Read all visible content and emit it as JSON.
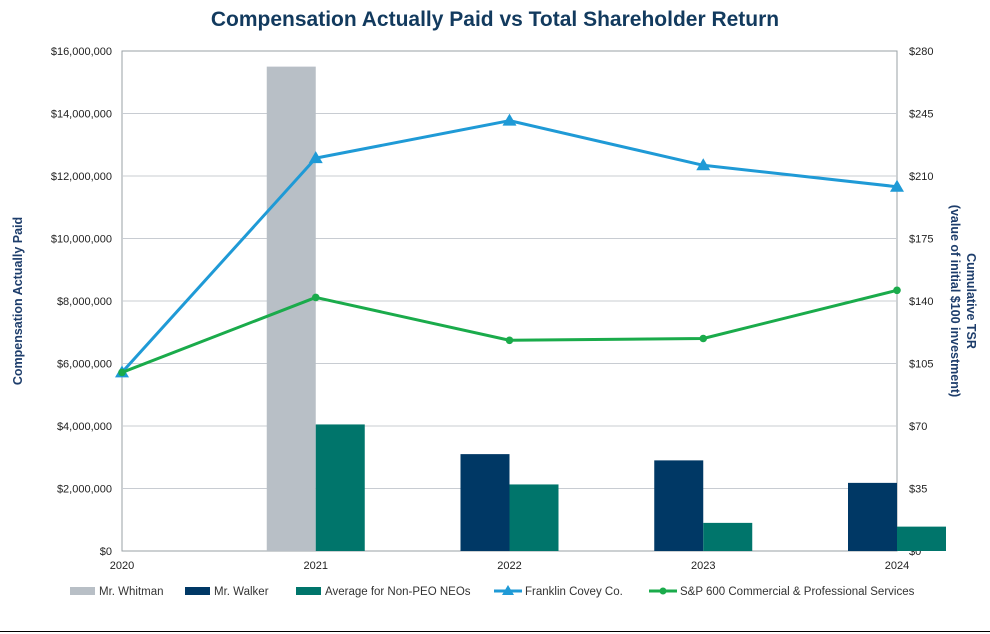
{
  "colors": {
    "whitman": "#b8bfc6",
    "walker": "#003865",
    "nonpeo": "#00756b",
    "fc": "#1f9ad6",
    "sp": "#1aab4b",
    "title": "#123a5e",
    "grid": "#c8ccd2"
  },
  "chart_data": {
    "type": "bar",
    "title": "Compensation Actually Paid vs Total Shareholder Return",
    "categories": [
      "2020",
      "2021",
      "2022",
      "2023",
      "2024"
    ],
    "ylabel_left": "Compensation Actually Paid",
    "ylabel_right": [
      "Cumulative TSR",
      "(value of initial $100 investment)"
    ],
    "ylim_left": [
      0,
      16000000
    ],
    "ylim_right": [
      0,
      280
    ],
    "left_ticks": [
      0,
      2000000,
      4000000,
      6000000,
      8000000,
      10000000,
      12000000,
      14000000,
      16000000
    ],
    "left_tick_labels": [
      "$0",
      "$2,000,000",
      "$4,000,000",
      "$6,000,000",
      "$8,000,000",
      "$10,000,000",
      "$12,000,000",
      "$14,000,000",
      "$16,000,000"
    ],
    "right_ticks": [
      0,
      35,
      70,
      105,
      140,
      175,
      210,
      245,
      280
    ],
    "right_tick_labels": [
      "$0",
      "$35",
      "$70",
      "$105",
      "$140",
      "$175",
      "$210",
      "$245",
      "$280"
    ],
    "bar_series": [
      {
        "name": "Mr. Whitman",
        "color_key": "whitman",
        "values": [
          null,
          15500000,
          null,
          null,
          null
        ]
      },
      {
        "name": "Mr. Walker",
        "color_key": "walker",
        "values": [
          null,
          null,
          3100000,
          2900000,
          2180000
        ]
      },
      {
        "name": "Average for Non-PEO NEOs",
        "color_key": "nonpeo",
        "values": [
          null,
          4050000,
          2130000,
          900000,
          780000
        ]
      }
    ],
    "line_series": [
      {
        "name": "Franklin Covey Co.",
        "color_key": "fc",
        "marker": "triangle",
        "values": [
          100,
          220,
          241,
          216,
          204
        ]
      },
      {
        "name": "S&P 600 Commercial & Professional Services",
        "color_key": "sp",
        "marker": "circle",
        "values": [
          100,
          142,
          118,
          119,
          146
        ]
      }
    ],
    "grid": true,
    "legend_position": "bottom"
  }
}
